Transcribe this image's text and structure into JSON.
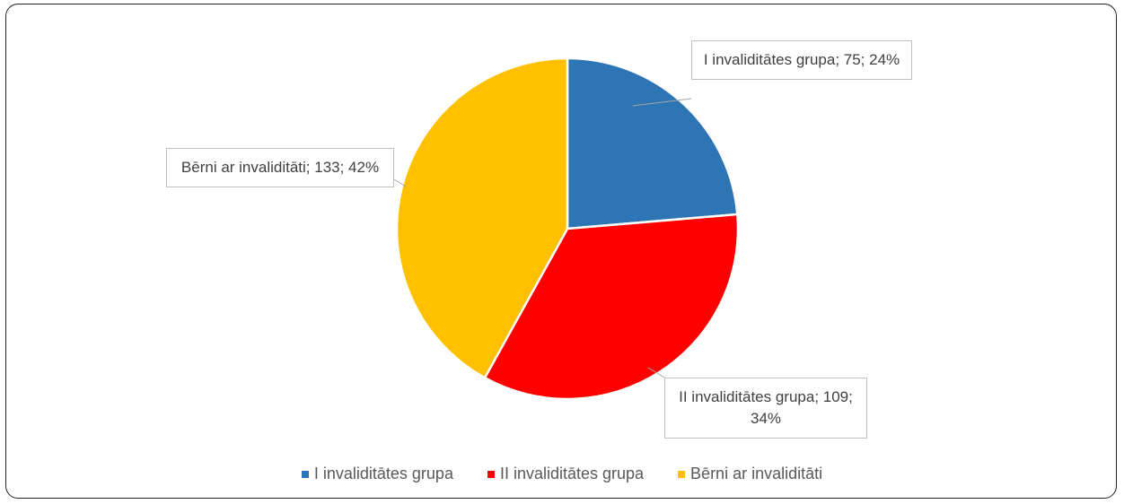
{
  "chart_data": {
    "type": "pie",
    "categories": [
      "I invaliditātes grupa",
      "II invaliditātes grupa",
      "Bērni ar invaliditāti"
    ],
    "values": [
      75,
      109,
      133
    ],
    "value_labels": [
      "I invaliditātes grupa; 75; 24%",
      "II invaliditātes grupa; 109; 34%",
      "Bērni ar invaliditāti; 133; 42%"
    ],
    "colors": [
      "#2e75b6",
      "#ff0000",
      "#ffc000"
    ],
    "legend": "bottom"
  }
}
